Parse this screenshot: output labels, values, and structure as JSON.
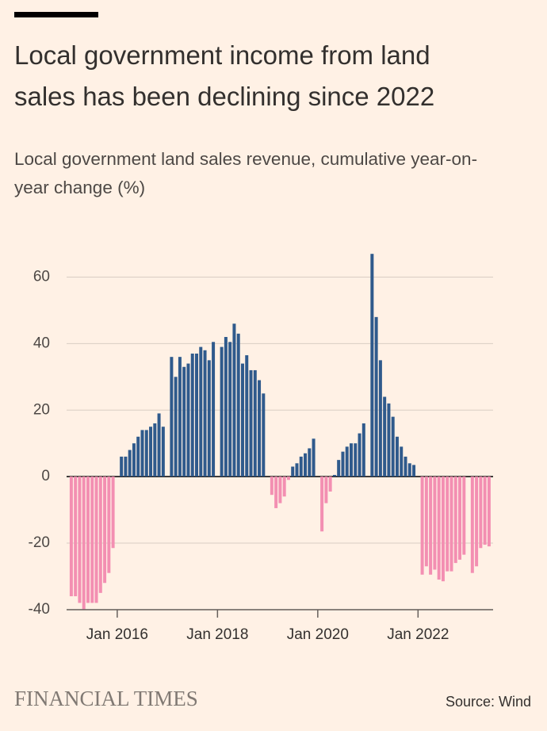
{
  "chart_data": {
    "type": "bar",
    "title": "Local government income from land sales has been declining since 2022",
    "subtitle": "Local government land sales revenue, cumulative year-on-year change (%)",
    "source": "Source: Wind",
    "logo": "FINANCIAL TIMES",
    "x": [
      "2015-01",
      "2015-02",
      "2015-03",
      "2015-04",
      "2015-05",
      "2015-06",
      "2015-07",
      "2015-08",
      "2015-09",
      "2015-10",
      "2015-11",
      "2015-12",
      "2016-01",
      "2016-02",
      "2016-03",
      "2016-04",
      "2016-05",
      "2016-06",
      "2016-07",
      "2016-08",
      "2016-09",
      "2016-10",
      "2016-11",
      "2016-12",
      "2017-01",
      "2017-02",
      "2017-03",
      "2017-04",
      "2017-05",
      "2017-06",
      "2017-07",
      "2017-08",
      "2017-09",
      "2017-10",
      "2017-11",
      "2017-12",
      "2018-01",
      "2018-02",
      "2018-03",
      "2018-04",
      "2018-05",
      "2018-06",
      "2018-07",
      "2018-08",
      "2018-09",
      "2018-10",
      "2018-11",
      "2018-12",
      "2019-01",
      "2019-02",
      "2019-03",
      "2019-04",
      "2019-05",
      "2019-06",
      "2019-07",
      "2019-08",
      "2019-09",
      "2019-10",
      "2019-11",
      "2019-12",
      "2020-01",
      "2020-02",
      "2020-03",
      "2020-04",
      "2020-05",
      "2020-06",
      "2020-07",
      "2020-08",
      "2020-09",
      "2020-10",
      "2020-11",
      "2020-12",
      "2021-01",
      "2021-02",
      "2021-03",
      "2021-04",
      "2021-05",
      "2021-06",
      "2021-07",
      "2021-08",
      "2021-09",
      "2021-10",
      "2021-11",
      "2021-12",
      "2022-01",
      "2022-02",
      "2022-03",
      "2022-04",
      "2022-05",
      "2022-06",
      "2022-07",
      "2022-08",
      "2022-09",
      "2022-10",
      "2022-11",
      "2022-12",
      "2023-01",
      "2023-02",
      "2023-03",
      "2023-04",
      "2023-05",
      "2023-06"
    ],
    "values": [
      null,
      -36,
      -36,
      -38,
      -40,
      -38,
      -38,
      -38,
      -35,
      -32,
      -29,
      -21.5,
      null,
      6,
      6,
      8,
      10,
      12,
      14,
      14,
      15,
      16,
      19,
      15,
      null,
      36,
      30,
      36,
      33,
      34,
      37,
      37,
      39,
      38,
      35,
      40.5,
      null,
      39,
      42,
      40.5,
      46,
      43,
      34,
      36.5,
      32,
      32,
      29,
      25,
      null,
      -5.5,
      -9.5,
      -8,
      -6,
      -1,
      3,
      4,
      6,
      7,
      8.5,
      11.4,
      null,
      -16.5,
      -8,
      -4.5,
      0.5,
      5,
      7.5,
      9,
      10,
      10,
      13,
      16,
      null,
      67,
      48,
      35,
      24,
      22,
      18,
      12,
      9,
      6,
      4,
      3.5,
      null,
      -29.5,
      -27,
      -29.5,
      -28,
      -31,
      -31.5,
      -28.5,
      -28.5,
      -26,
      -25,
      -23.5,
      null,
      -29,
      -27,
      -21.5,
      -20.5,
      -21
    ],
    "positive_color": "#2f5a8c",
    "negative_color": "#f38fb2",
    "ylim": [
      -41,
      68
    ],
    "yticks": [
      60,
      40,
      20,
      0,
      -20,
      -40
    ],
    "xticks": [
      {
        "value": "2016-01",
        "label": "Jan 2016"
      },
      {
        "value": "2018-01",
        "label": "Jan 2018"
      },
      {
        "value": "2020-01",
        "label": "Jan 2020"
      },
      {
        "value": "2022-01",
        "label": "Jan 2022"
      }
    ],
    "grid": true
  }
}
